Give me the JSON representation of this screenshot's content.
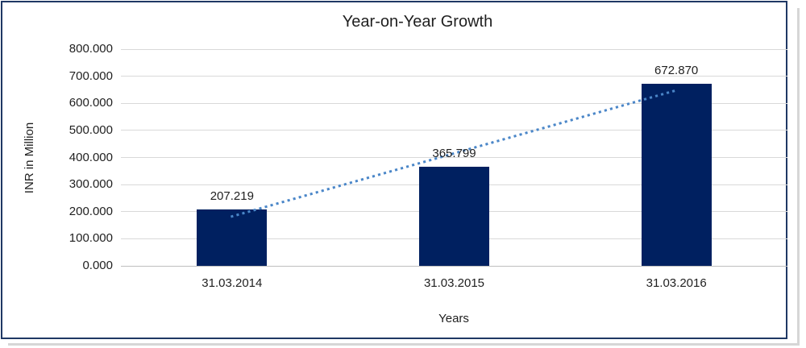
{
  "chart_data": {
    "type": "bar",
    "title": "Year-on-Year Growth",
    "xlabel": "Years",
    "ylabel": "INR in Million",
    "categories": [
      "31.03.2014",
      "31.03.2015",
      "31.03.2016"
    ],
    "values": [
      207.219,
      365.799,
      672.87
    ],
    "value_labels": [
      "207.219",
      "365.799",
      "672.870"
    ],
    "ylim": [
      0,
      800
    ],
    "ytick_step": 100,
    "ytick_labels": [
      "0.000",
      "100.000",
      "200.000",
      "300.000",
      "400.000",
      "500.000",
      "600.000",
      "700.000",
      "800.000"
    ],
    "grid": true,
    "legend_position": "none",
    "trendline": {
      "fit": "linear",
      "style": "dotted",
      "span": "first-to-last-category"
    },
    "colors": {
      "bar": "#002060",
      "trendline": "#4a86c8",
      "gridline": "#d9d9d9",
      "axis_line": "#bfbfbf",
      "text": "#1f1f1f",
      "frame_border": "#1f3864",
      "shadow": "#d6d6d6",
      "background": "#ffffff"
    }
  }
}
